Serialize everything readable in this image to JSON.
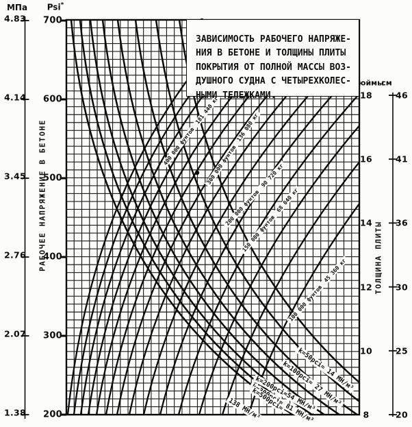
{
  "title_box": {
    "lines": [
      "ЗАВИСИМОСТЬ РАБОЧЕГО НАПРЯЖЕ-",
      "НИЯ В БЕТОНЕ И ТОЛЩИНЫ ПЛИТЫ",
      "ПОКРЫТИЯ ОТ ПОЛНОЙ МАССЫ ВОЗ-",
      "ДУШНОГО СУДНА С ЧЕТЫРЕХКОЛЕС-",
      "НЫМИ ТЕЛЕЖКАМИ."
    ]
  },
  "left_axis": {
    "unit_primary": "МПа",
    "unit_secondary": "Psi",
    "footnote_mark": "*",
    "label": "РАБОЧЕЕ НАПРЯЖЕНИЕ В БЕТОНЕ",
    "mpa_ticks": [
      "4.83",
      "4.14",
      "3.45",
      "2.76",
      "2.07",
      "1.38"
    ],
    "psi_ticks": [
      "700",
      "600",
      "500",
      "400",
      "300",
      "200"
    ]
  },
  "right_axis": {
    "unit_primary": "дюймы",
    "unit_secondary": "см",
    "label": "ТОЛЩИНА ПЛИТЫ",
    "inch_ticks": [
      "18",
      "16",
      "14",
      "12",
      "10",
      "8"
    ],
    "cm_ticks": [
      "46",
      "41",
      "36",
      "30",
      "25",
      "20"
    ]
  },
  "chart_data": {
    "type": "line",
    "title": "Зависимость рабочего напряжения в бетоне и толщины плиты покрытия от полной массы воздушного судна с четырехколесными тележками",
    "grid": "fine square grid, on",
    "y_axis_left": {
      "label": "РАБОЧЕЕ НАПРЯЖЕНИЕ В БЕТОНЕ",
      "units": [
        {
          "name": "МПа",
          "ticks": [
            4.83,
            4.14,
            3.45,
            2.76,
            2.07,
            1.38
          ]
        },
        {
          "name": "Psi",
          "ticks": [
            700,
            600,
            500,
            400,
            300,
            200
          ]
        }
      ],
      "range_psi": [
        200,
        700
      ]
    },
    "y_axis_right": {
      "label": "ТОЛЩИНА ПЛИТЫ",
      "units": [
        {
          "name": "дюймы",
          "ticks": [
            18,
            16,
            14,
            12,
            10,
            8
          ]
        },
        {
          "name": "см",
          "ticks": [
            46,
            41,
            36,
            30,
            25,
            20
          ]
        }
      ],
      "range_inch": [
        8,
        18
      ]
    },
    "weight_lines": [
      {
        "lb": 400000,
        "kg": 181440,
        "label_lb": "400 000 фунтов",
        "label_kg": "181 440 кг"
      },
      {
        "lb": 300000,
        "kg": 136080,
        "label_lb": "300 000 фунтов",
        "label_kg": "136 080 кг"
      },
      {
        "lb": 200000,
        "kg": 90720,
        "label_lb": "200 000 фунтов",
        "label_kg": "90 720 кг"
      },
      {
        "lb": 150000,
        "kg": 68040,
        "label_lb": "150 000 фунтов",
        "label_kg": "68 040 кг"
      },
      {
        "lb": 100000,
        "kg": 45360,
        "label_lb": "100 000 фунтов",
        "label_kg": "45 360 кг"
      }
    ],
    "k_lines": [
      {
        "pci": 50,
        "mn_m3": 14,
        "label": "k=50pci≈ 14 МН/м³"
      },
      {
        "pci": 100,
        "mn_m3": 27,
        "label": "k=100pci≈ 27 МН/м³"
      },
      {
        "pci": 200,
        "mn_m3": 54,
        "label": "k=200pci≈54 МН/м³"
      },
      {
        "pci": 300,
        "mn_m3": 81,
        "label": "k=300pci≈ 81 МН/м³"
      },
      {
        "pci": 500,
        "mn_m3": 138,
        "label": "k=500pci≈",
        "label2": "138 МН/м³"
      }
    ]
  }
}
